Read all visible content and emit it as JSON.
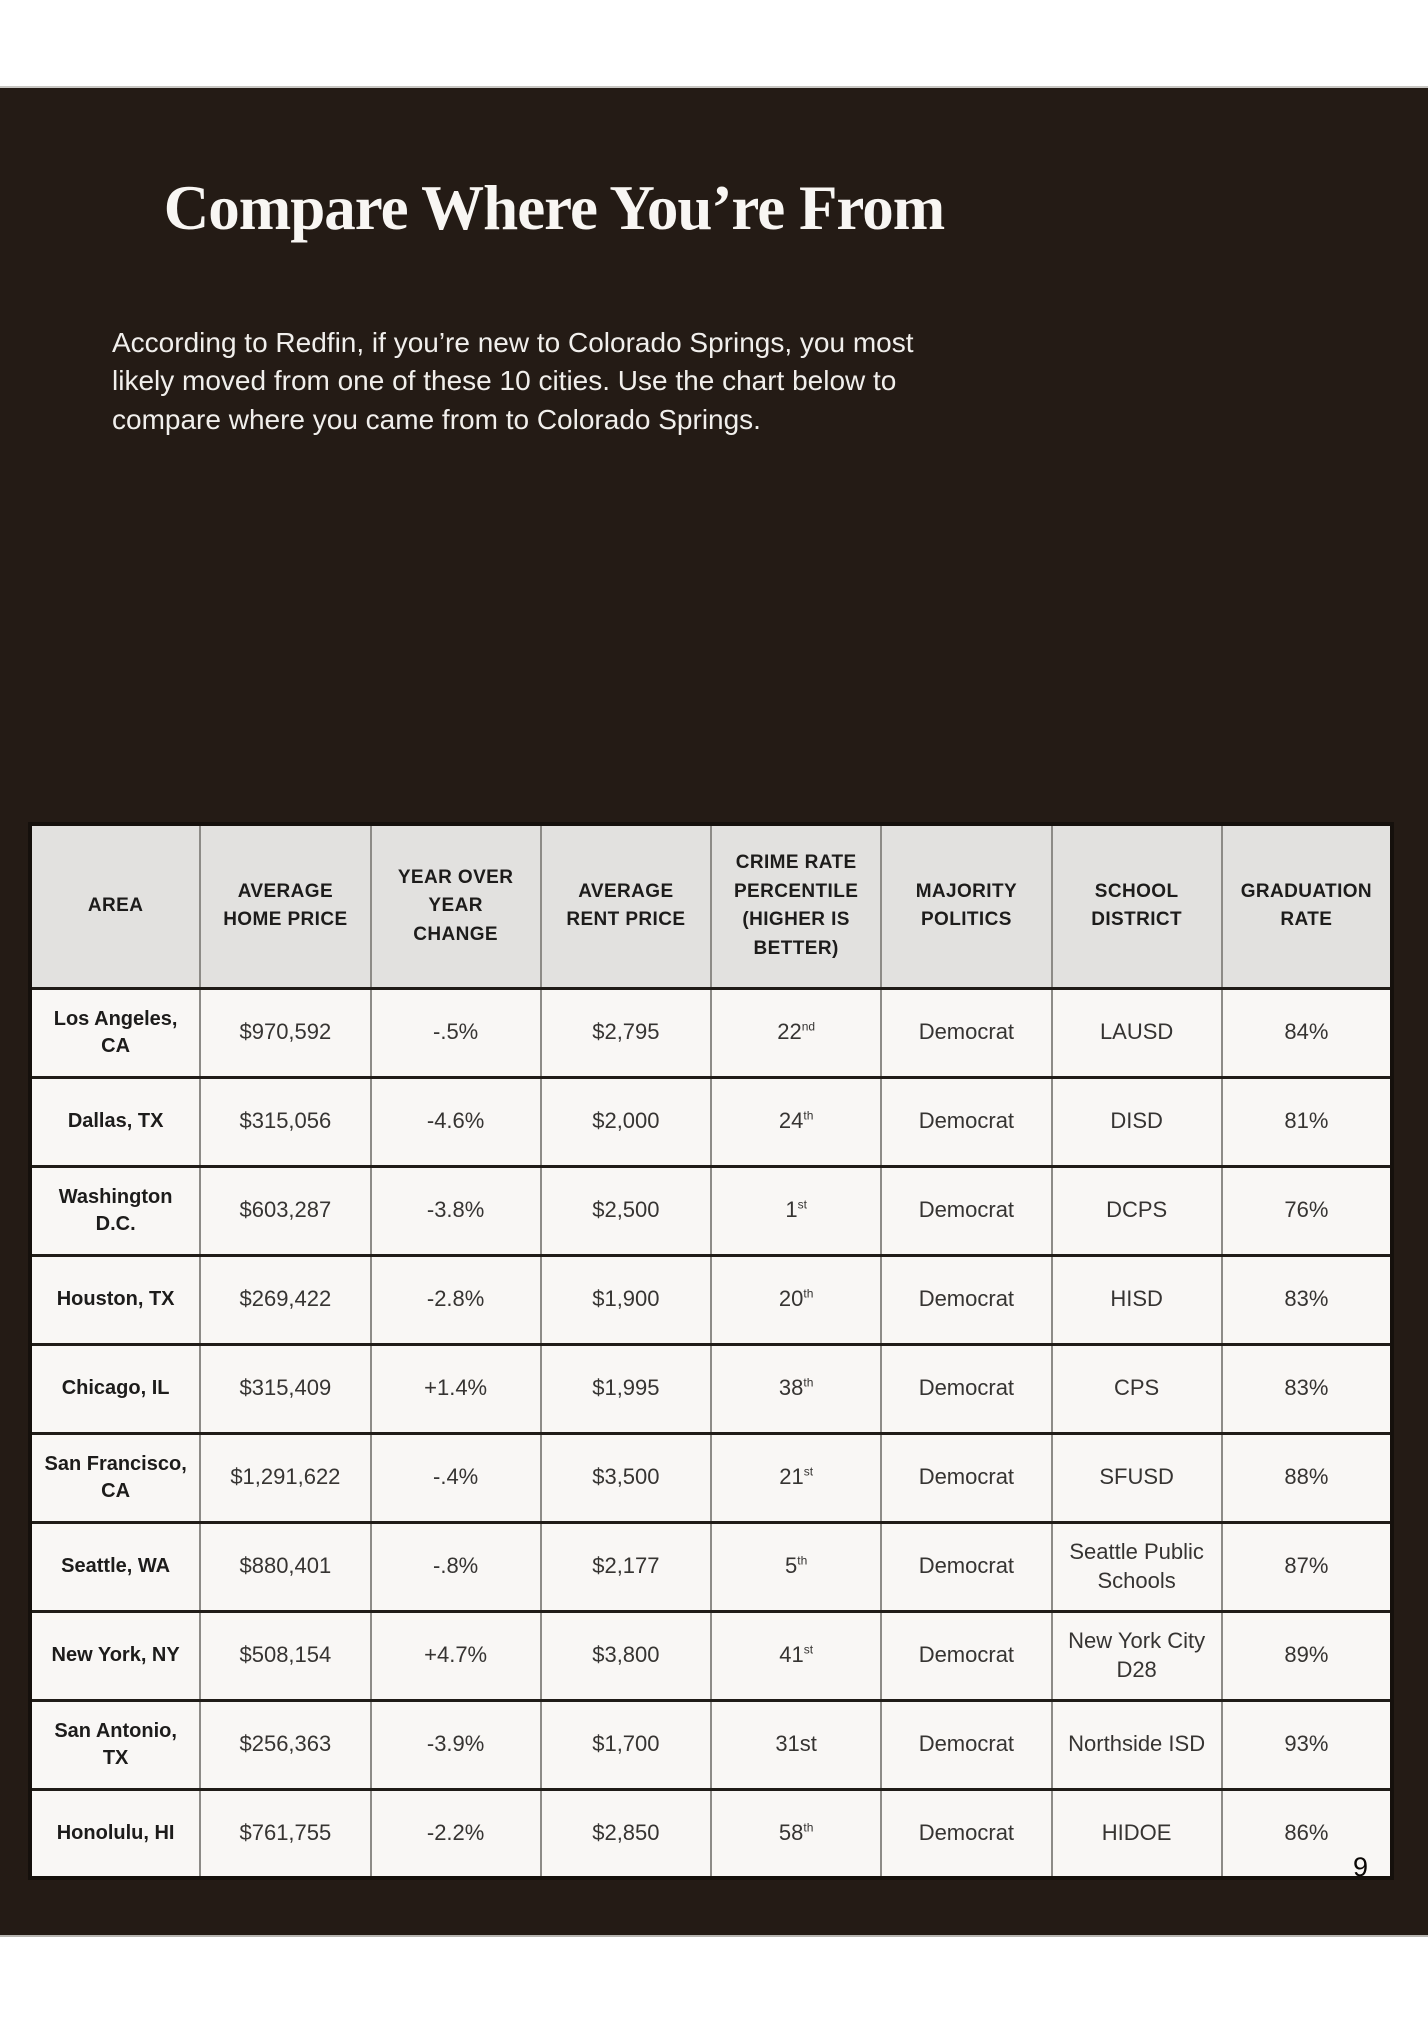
{
  "page": {
    "title": "Compare Where You’re From",
    "intro": "According to Redfin, if you’re new to Colorado Springs, you most\nlikely moved from one of these 10 cities. Use the chart below to\ncompare where you came from to Colorado Springs.",
    "page_number": "9"
  },
  "colors": {
    "page_background": "#241b15",
    "header_cell_background": "#e2e1df",
    "data_cell_background": "#f9f7f5",
    "title_text": "#f8f6f3"
  },
  "table": {
    "headers": [
      "AREA",
      "AVERAGE\nHOME PRICE",
      "YEAR OVER\nYEAR\nCHANGE",
      "AVERAGE\nRENT PRICE",
      "CRIME RATE\nPERCENTILE\n(HIGHER IS\nBETTER)",
      "MAJORITY\nPOLITICS",
      "SCHOOL\nDISTRICT",
      "GRADUATION\nRATE"
    ],
    "rows": [
      {
        "area": "Los Angeles,\nCA",
        "home_price": "$970,592",
        "yoy_change": "-.5%",
        "rent_price": "$2,795",
        "crime": {
          "rank": "22",
          "suffix": "nd",
          "sup": true
        },
        "politics": "Democrat",
        "district": "LAUSD",
        "grad_rate": "84%"
      },
      {
        "area": "Dallas, TX",
        "home_price": "$315,056",
        "yoy_change": "-4.6%",
        "rent_price": "$2,000",
        "crime": {
          "rank": "24",
          "suffix": "th",
          "sup": true
        },
        "politics": "Democrat",
        "district": "DISD",
        "grad_rate": "81%"
      },
      {
        "area": "Washington\nD.C.",
        "home_price": "$603,287",
        "yoy_change": "-3.8%",
        "rent_price": "$2,500",
        "crime": {
          "rank": "1",
          "suffix": "st",
          "sup": true
        },
        "politics": "Democrat",
        "district": "DCPS",
        "grad_rate": "76%"
      },
      {
        "area": "Houston, TX",
        "home_price": "$269,422",
        "yoy_change": "-2.8%",
        "rent_price": "$1,900",
        "crime": {
          "rank": "20",
          "suffix": "th",
          "sup": true
        },
        "politics": "Democrat",
        "district": "HISD",
        "grad_rate": "83%"
      },
      {
        "area": "Chicago, IL",
        "home_price": "$315,409",
        "yoy_change": "+1.4%",
        "rent_price": "$1,995",
        "crime": {
          "rank": "38",
          "suffix": "th",
          "sup": true
        },
        "politics": "Democrat",
        "district": "CPS",
        "grad_rate": "83%"
      },
      {
        "area": "San Francisco,\nCA",
        "home_price": "$1,291,622",
        "yoy_change": "-.4%",
        "rent_price": "$3,500",
        "crime": {
          "rank": "21",
          "suffix": "st",
          "sup": true
        },
        "politics": "Democrat",
        "district": "SFUSD",
        "grad_rate": "88%"
      },
      {
        "area": "Seattle, WA",
        "home_price": "$880,401",
        "yoy_change": "-.8%",
        "rent_price": "$2,177",
        "crime": {
          "rank": "5",
          "suffix": "th",
          "sup": true
        },
        "politics": "Democrat",
        "district": "Seattle Public\nSchools",
        "grad_rate": "87%"
      },
      {
        "area": "New York, NY",
        "home_price": "$508,154",
        "yoy_change": "+4.7%",
        "rent_price": "$3,800",
        "crime": {
          "rank": "41",
          "suffix": "st",
          "sup": true
        },
        "politics": "Democrat",
        "district": "New York City\nD28",
        "grad_rate": "89%"
      },
      {
        "area": "San Antonio,\nTX",
        "home_price": "$256,363",
        "yoy_change": "-3.9%",
        "rent_price": "$1,700",
        "crime": {
          "rank": "31",
          "suffix": "st",
          "sup": false
        },
        "politics": "Democrat",
        "district": "Northside ISD",
        "grad_rate": "93%"
      },
      {
        "area": "Honolulu, HI",
        "home_price": "$761,755",
        "yoy_change": "-2.2%",
        "rent_price": "$2,850",
        "crime": {
          "rank": "58",
          "suffix": "th",
          "sup": true
        },
        "politics": "Democrat",
        "district": "HIDOE",
        "grad_rate": "86%"
      }
    ]
  }
}
